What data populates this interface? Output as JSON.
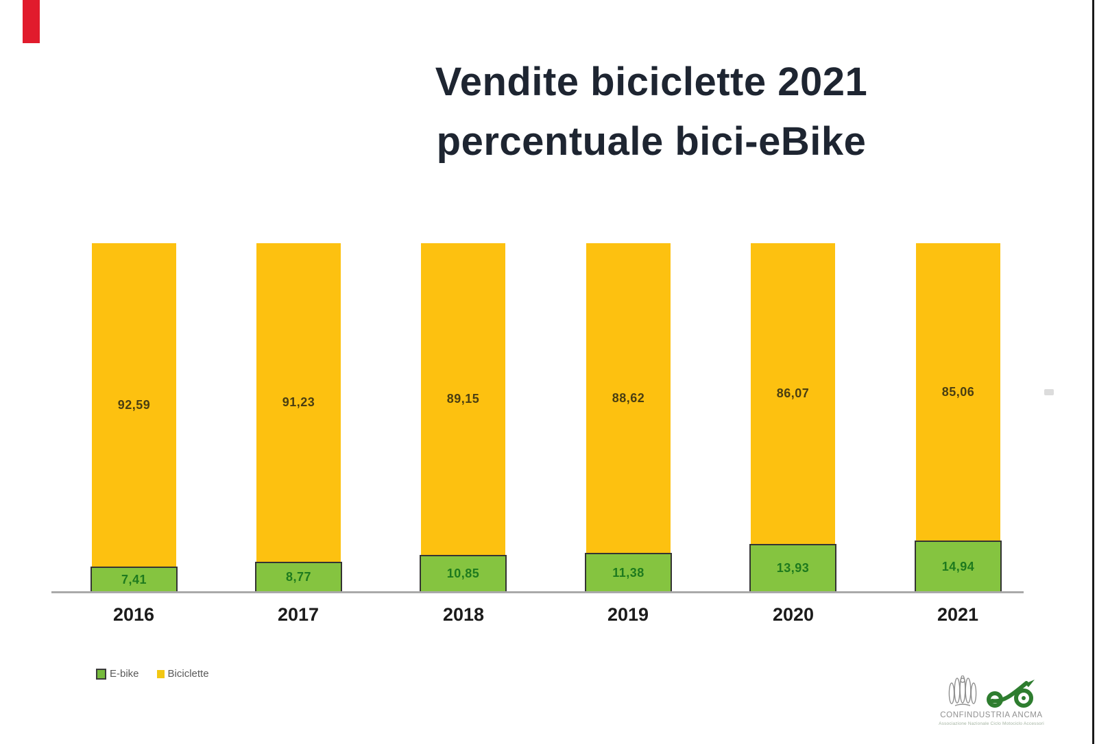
{
  "title": {
    "line1": "Vendite biciclette 2021",
    "line2": "percentuale bici-eBike"
  },
  "chart_data": {
    "type": "bar",
    "stacked": true,
    "unit": "percent",
    "title": "Vendite biciclette 2021 percentuale bici-eBike",
    "categories": [
      "2016",
      "2017",
      "2018",
      "2019",
      "2020",
      "2021"
    ],
    "series": [
      {
        "name": "E-bike",
        "color": "#85c440",
        "border_color": "#333333",
        "label_color": "#1e7a1e",
        "values": [
          7.41,
          8.77,
          10.85,
          11.38,
          13.93,
          14.94
        ],
        "labels": [
          "7,41",
          "8,77",
          "10,85",
          "11,38",
          "13,93",
          "14,94"
        ]
      },
      {
        "name": "Biciclette",
        "color": "#fdc110",
        "border_color": "none",
        "label_color": "#4a3e12",
        "values": [
          92.59,
          91.23,
          89.15,
          88.62,
          86.07,
          85.06
        ],
        "labels": [
          "92,59",
          "91,23",
          "89,15",
          "88,62",
          "86,07",
          "85,06"
        ]
      }
    ],
    "ylim": [
      0,
      100
    ],
    "grid": false,
    "axis_line_color": "#a9a9a9",
    "legend_position": "bottom-left"
  },
  "legend": {
    "items": [
      {
        "label": "E-bike",
        "swatch_color": "#76bb3c",
        "swatch_border": "#3a3a3a"
      },
      {
        "label": "Biciclette",
        "swatch_color": "#f2c713",
        "swatch_border": "none"
      }
    ]
  },
  "footer": {
    "brand": "CONFINDUSTRIA ANCMA",
    "tagline": "Associazione Nazionale Ciclo Motociclo Accessori"
  },
  "decor": {
    "red_stripe_color": "#e11b2c",
    "right_border_color": "#1a1a1a",
    "title_color": "#1e2531"
  }
}
